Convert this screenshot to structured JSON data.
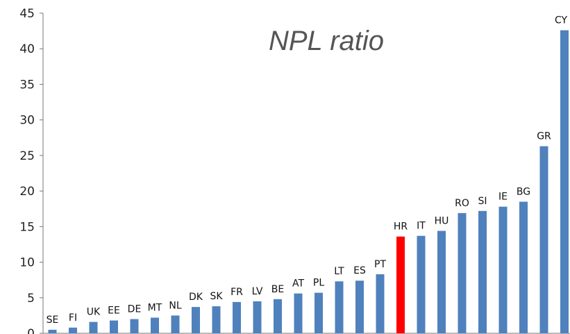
{
  "chart_data": {
    "type": "bar",
    "title": "NPL ratio",
    "xlabel": "",
    "ylabel": "",
    "ylim": [
      0,
      45
    ],
    "yticks": [
      0,
      5,
      10,
      15,
      20,
      25,
      30,
      35,
      40,
      45
    ],
    "grid": false,
    "legend": "none",
    "categories": [
      "SE",
      "FI",
      "UK",
      "EE",
      "DE",
      "MT",
      "NL",
      "DK",
      "SK",
      "FR",
      "LV",
      "BE",
      "AT",
      "PL",
      "LT",
      "ES",
      "PT",
      "HR",
      "IT",
      "HU",
      "RO",
      "SI",
      "IE",
      "BG",
      "GR",
      "CY"
    ],
    "values": [
      0.5,
      0.8,
      1.6,
      1.8,
      2.0,
      2.2,
      2.5,
      3.7,
      3.8,
      4.4,
      4.5,
      4.8,
      5.6,
      5.7,
      7.3,
      7.4,
      8.3,
      13.6,
      13.7,
      14.4,
      16.9,
      17.2,
      17.8,
      18.5,
      26.3,
      42.6
    ],
    "colors": {
      "default": "#4f81bd",
      "highlight": "#ff0000"
    },
    "highlight": "HR"
  }
}
